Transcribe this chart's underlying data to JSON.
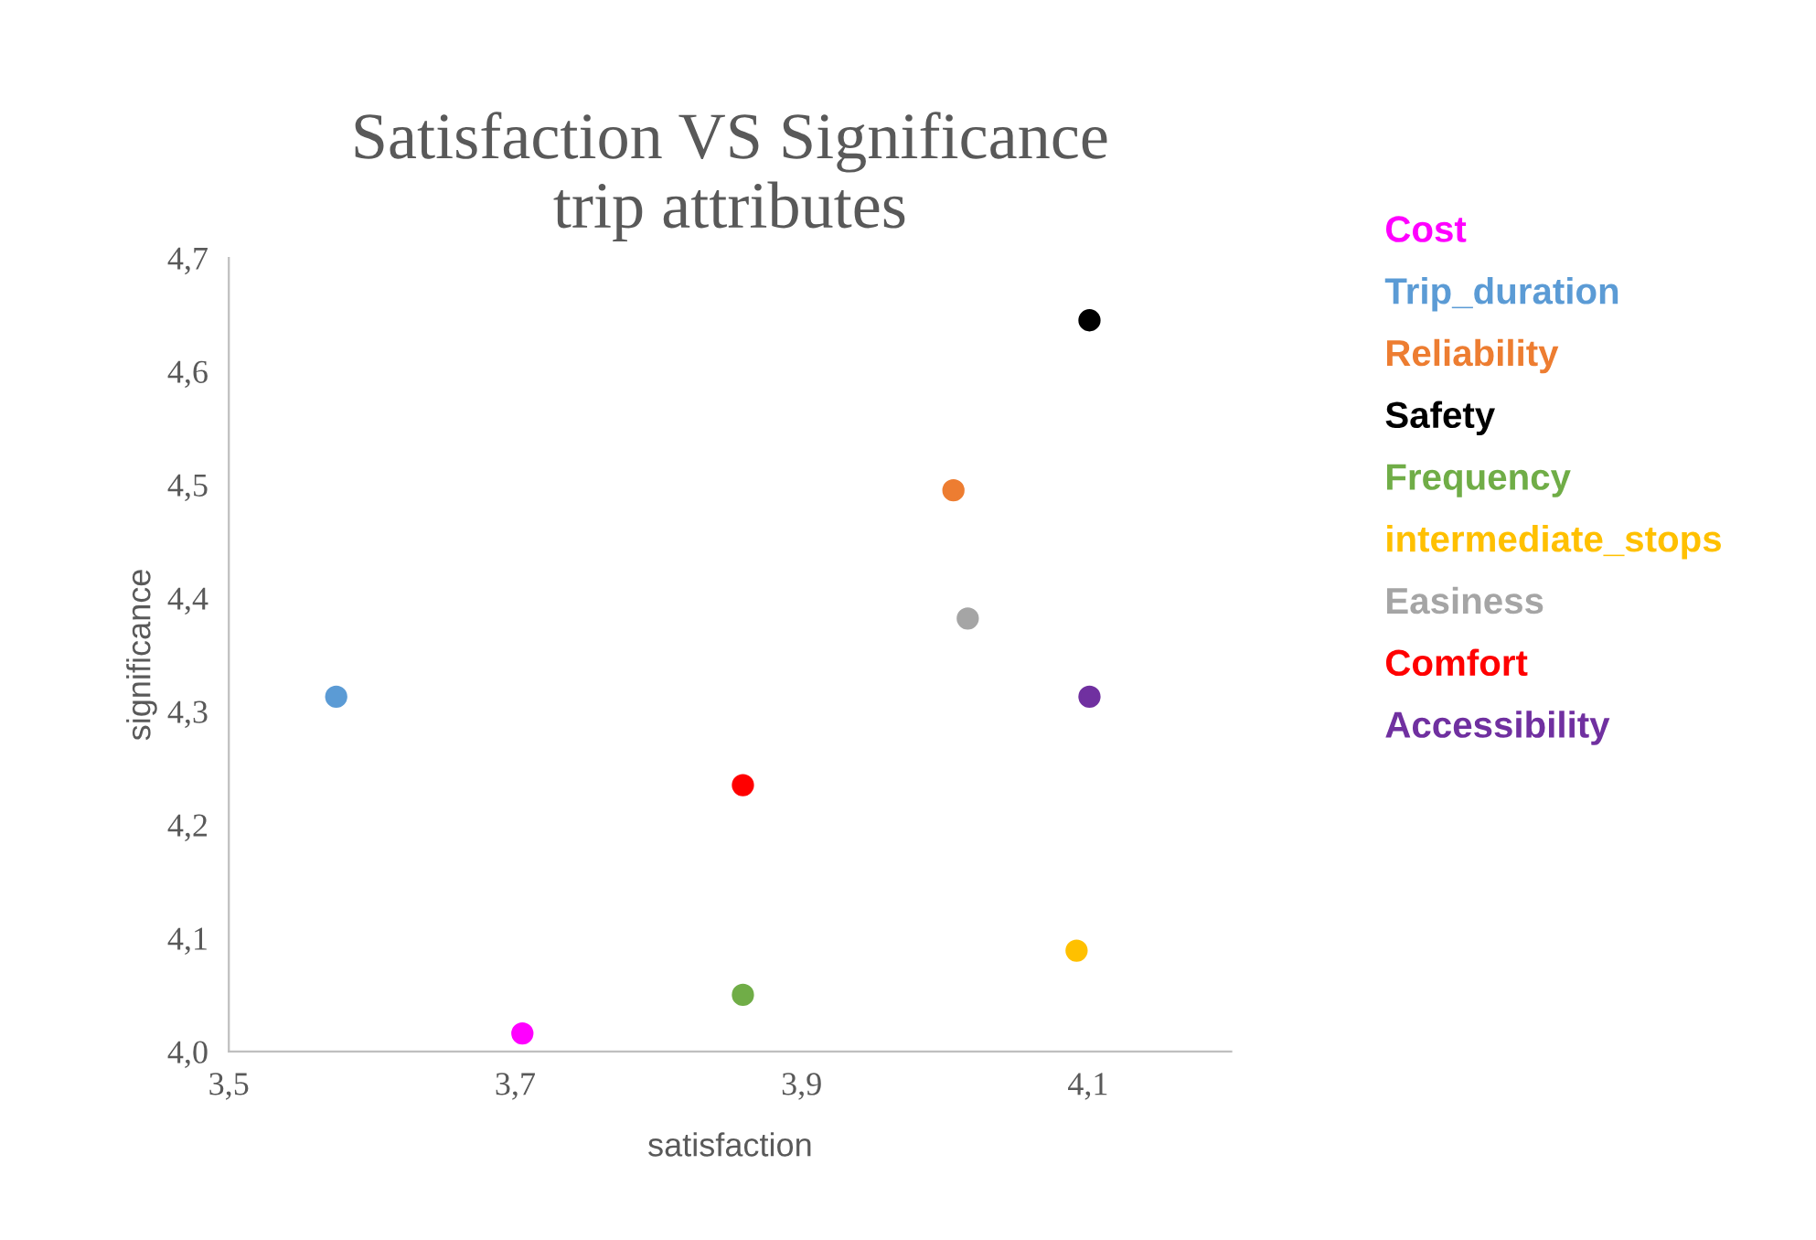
{
  "chart_data": {
    "type": "scatter",
    "title": "Satisfaction VS Significance\ntrip attributes",
    "xlabel": "satisfaction",
    "ylabel": "significance",
    "series": [
      {
        "name": "Cost",
        "color": "#ff00ff",
        "x": [
          3.705
        ],
        "values": [
          4.016
        ]
      },
      {
        "name": "Trip_duration",
        "color": "#5b9bd5",
        "x": [
          3.575
        ],
        "values": [
          4.313
        ]
      },
      {
        "name": "Reliability",
        "color": "#ed7d31",
        "x": [
          4.006
        ],
        "values": [
          4.495
        ]
      },
      {
        "name": "Safety",
        "color": "#000000",
        "x": [
          4.101
        ],
        "values": [
          4.645
        ]
      },
      {
        "name": "Frequency",
        "color": "#70ad47",
        "x": [
          3.859
        ],
        "values": [
          4.05
        ]
      },
      {
        "name": "intermediate_stops",
        "color": "#ffc000",
        "x": [
          4.092
        ],
        "values": [
          4.089
        ]
      },
      {
        "name": "Easiness",
        "color": "#a5a5a5",
        "x": [
          4.016
        ],
        "values": [
          4.382
        ]
      },
      {
        "name": "Comfort",
        "color": "#ff0000",
        "x": [
          3.859
        ],
        "values": [
          4.235
        ]
      },
      {
        "name": "Accessibility",
        "color": "#7030a0",
        "x": [
          4.101
        ],
        "values": [
          4.313
        ]
      }
    ],
    "xlim": [
      3.5,
      4.2
    ],
    "xticks": [
      {
        "value": 3.5,
        "label": "3,5"
      },
      {
        "value": 3.7,
        "label": "3,7"
      },
      {
        "value": 3.9,
        "label": "3,9"
      },
      {
        "value": 4.1,
        "label": "4,1"
      }
    ],
    "ylim": [
      4.0,
      4.7
    ],
    "yticks": [
      {
        "value": 4.0,
        "label": "4,0"
      },
      {
        "value": 4.1,
        "label": "4,1"
      },
      {
        "value": 4.2,
        "label": "4,2"
      },
      {
        "value": 4.3,
        "label": "4,3"
      },
      {
        "value": 4.4,
        "label": "4,4"
      },
      {
        "value": 4.5,
        "label": "4,5"
      },
      {
        "value": 4.6,
        "label": "4,6"
      },
      {
        "value": 4.7,
        "label": "4,7"
      }
    ],
    "grid": false,
    "legend": "right",
    "marker": "circle"
  }
}
